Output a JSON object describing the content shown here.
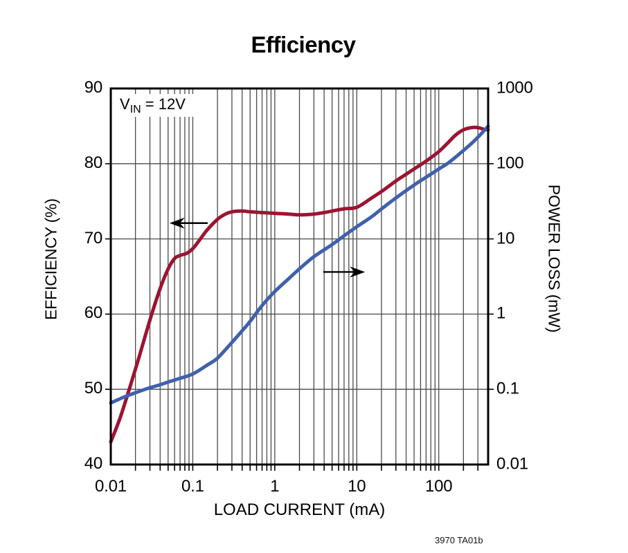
{
  "title": "Efficiency",
  "footer": {
    "part_number": "3970 TA01b"
  },
  "annotation": {
    "v": "V",
    "v_sub": "IN",
    "v_rest": " = 12V"
  },
  "colors": {
    "background": "#ffffff",
    "efficiency_curve": "#9c1432",
    "power_loss_curve": "#4060ac",
    "grid": "#4a4a4a",
    "frame": "#000000",
    "text": "#000000"
  },
  "chart_data": {
    "type": "line",
    "title": "Efficiency",
    "xlabel": "LOAD CURRENT (mA)",
    "x_scale": "log",
    "xlim": [
      0.01,
      400
    ],
    "x_tick_labels": [
      "0.01",
      "0.1",
      "1",
      "10",
      "100"
    ],
    "x_tick_values": [
      0.01,
      0.1,
      1,
      10,
      100
    ],
    "left_axis": {
      "label": "EFFICIENCY (%)",
      "scale": "linear",
      "lim": [
        40,
        90
      ],
      "tick_labels": [
        "90",
        "80",
        "70",
        "60",
        "50",
        "40"
      ],
      "tick_values": [
        90,
        80,
        70,
        60,
        50,
        40
      ]
    },
    "right_axis": {
      "label": "POWER LOSS (mW)",
      "scale": "log",
      "lim": [
        0.01,
        1000
      ],
      "tick_labels": [
        "1000",
        "100",
        "10",
        "1",
        "0.1",
        "0.01"
      ],
      "tick_values": [
        1000,
        100,
        10,
        1,
        0.1,
        0.01
      ]
    },
    "grid": {
      "horizontal": "major-only",
      "vertical": "log-minor-and-major"
    },
    "annotation": "VIN = 12V",
    "series": [
      {
        "name": "Efficiency",
        "axis": "left",
        "units": "%",
        "color_key": "efficiency_curve",
        "points": [
          [
            0.01,
            43.0
          ],
          [
            0.013,
            46.2
          ],
          [
            0.017,
            50.2
          ],
          [
            0.022,
            54.2
          ],
          [
            0.03,
            59.2
          ],
          [
            0.04,
            63.4
          ],
          [
            0.05,
            66.0
          ],
          [
            0.06,
            67.4
          ],
          [
            0.07,
            67.8
          ],
          [
            0.085,
            68.1
          ],
          [
            0.1,
            68.7
          ],
          [
            0.12,
            69.8
          ],
          [
            0.15,
            71.2
          ],
          [
            0.2,
            72.6
          ],
          [
            0.25,
            73.3
          ],
          [
            0.3,
            73.6
          ],
          [
            0.4,
            73.7
          ],
          [
            0.5,
            73.6
          ],
          [
            0.7,
            73.5
          ],
          [
            1,
            73.4
          ],
          [
            1.5,
            73.3
          ],
          [
            2,
            73.2
          ],
          [
            3,
            73.3
          ],
          [
            4,
            73.5
          ],
          [
            5,
            73.7
          ],
          [
            7,
            74.0
          ],
          [
            10,
            74.2
          ],
          [
            15,
            75.4
          ],
          [
            20,
            76.3
          ],
          [
            30,
            77.7
          ],
          [
            40,
            78.6
          ],
          [
            50,
            79.3
          ],
          [
            63,
            80.0
          ],
          [
            80,
            80.8
          ],
          [
            100,
            81.6
          ],
          [
            130,
            82.8
          ],
          [
            160,
            83.8
          ],
          [
            200,
            84.5
          ],
          [
            250,
            84.8
          ],
          [
            300,
            84.8
          ],
          [
            350,
            84.6
          ],
          [
            400,
            84.5
          ]
        ]
      },
      {
        "name": "Power Loss",
        "axis": "right",
        "units": "mW",
        "color_key": "power_loss_curve",
        "points": [
          [
            0.01,
            0.066
          ],
          [
            0.015,
            0.08
          ],
          [
            0.02,
            0.09
          ],
          [
            0.03,
            0.105
          ],
          [
            0.04,
            0.115
          ],
          [
            0.05,
            0.125
          ],
          [
            0.07,
            0.14
          ],
          [
            0.1,
            0.16
          ],
          [
            0.15,
            0.21
          ],
          [
            0.2,
            0.26
          ],
          [
            0.3,
            0.42
          ],
          [
            0.4,
            0.6
          ],
          [
            0.5,
            0.8
          ],
          [
            0.7,
            1.3
          ],
          [
            1,
            2.0
          ],
          [
            1.5,
            3.0
          ],
          [
            2,
            4.0
          ],
          [
            3,
            5.8
          ],
          [
            5,
            8.4
          ],
          [
            7,
            11
          ],
          [
            10,
            14.5
          ],
          [
            15,
            19.5
          ],
          [
            20,
            25
          ],
          [
            30,
            35
          ],
          [
            50,
            52
          ],
          [
            70,
            66
          ],
          [
            100,
            85
          ],
          [
            130,
            102
          ],
          [
            160,
            122
          ],
          [
            200,
            150
          ],
          [
            250,
            185
          ],
          [
            300,
            225
          ],
          [
            350,
            268
          ],
          [
            400,
            315
          ]
        ]
      }
    ],
    "arrows": [
      {
        "meaning": "efficiency-reads-left-axis",
        "direction": "left",
        "y_left_axis": 72.1,
        "x_tail": 0.152,
        "x_tip": 0.052
      },
      {
        "meaning": "power-loss-reads-right-axis",
        "direction": "right",
        "y_left_axis": 65.6,
        "x_tail": 3.9,
        "x_tip": 12.6
      }
    ]
  }
}
